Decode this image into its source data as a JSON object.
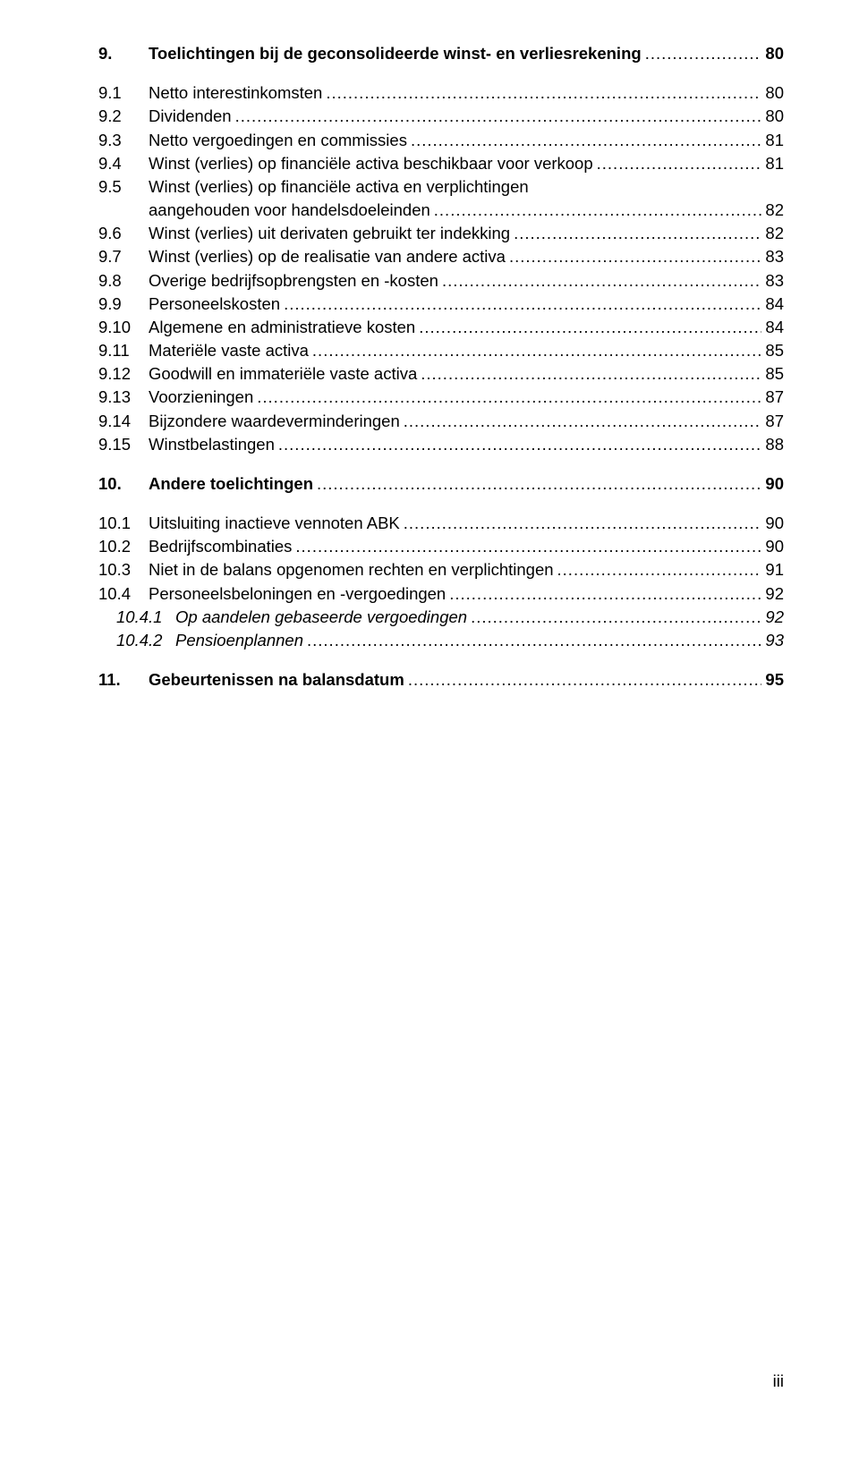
{
  "footer": "iii",
  "entries": [
    {
      "level": 1,
      "bold": true,
      "italic": false,
      "num": "9.",
      "title": "Toelichtingen bij de geconsolideerde winst- en verliesrekening",
      "page": "80",
      "gapBefore": "none"
    },
    {
      "level": 2,
      "bold": false,
      "italic": false,
      "num": "9.1",
      "title": "Netto interestinkomsten",
      "page": "80",
      "gapBefore": "group"
    },
    {
      "level": 2,
      "bold": false,
      "italic": false,
      "num": "9.2",
      "title": "Dividenden",
      "page": "80",
      "gapBefore": "none"
    },
    {
      "level": 2,
      "bold": false,
      "italic": false,
      "num": "9.3",
      "title": "Netto vergoedingen en commissies",
      "page": "81",
      "gapBefore": "none"
    },
    {
      "level": 2,
      "bold": false,
      "italic": false,
      "num": "9.4",
      "title": "Winst (verlies) op financiële activa beschikbaar voor verkoop",
      "page": "81",
      "gapBefore": "none"
    },
    {
      "level": 2,
      "bold": false,
      "italic": false,
      "num": "9.5",
      "title": "Winst (verlies) op financiële activa en verplichtingen aangehouden voor handelsdoeleinden",
      "page": "82",
      "gapBefore": "none",
      "wrap": true
    },
    {
      "level": 2,
      "bold": false,
      "italic": false,
      "num": "9.6",
      "title": "Winst (verlies) uit derivaten gebruikt ter indekking",
      "page": "82",
      "gapBefore": "none"
    },
    {
      "level": 2,
      "bold": false,
      "italic": false,
      "num": "9.7",
      "title": "Winst (verlies) op de realisatie van andere activa",
      "page": "83",
      "gapBefore": "none"
    },
    {
      "level": 2,
      "bold": false,
      "italic": false,
      "num": "9.8",
      "title": "Overige bedrijfsopbrengsten en -kosten",
      "page": "83",
      "gapBefore": "none"
    },
    {
      "level": 2,
      "bold": false,
      "italic": false,
      "num": "9.9",
      "title": "Personeelskosten",
      "page": "84",
      "gapBefore": "none"
    },
    {
      "level": 2,
      "bold": false,
      "italic": false,
      "num": "9.10",
      "title": "Algemene en administratieve kosten",
      "page": "84",
      "gapBefore": "none"
    },
    {
      "level": 2,
      "bold": false,
      "italic": false,
      "num": "9.11",
      "title": "Materiële vaste activa",
      "page": "85",
      "gapBefore": "none"
    },
    {
      "level": 2,
      "bold": false,
      "italic": false,
      "num": "9.12",
      "title": "Goodwill en immateriële vaste activa",
      "page": "85",
      "gapBefore": "none"
    },
    {
      "level": 2,
      "bold": false,
      "italic": false,
      "num": "9.13",
      "title": "Voorzieningen",
      "page": "87",
      "gapBefore": "none"
    },
    {
      "level": 2,
      "bold": false,
      "italic": false,
      "num": "9.14",
      "title": "Bijzondere waardeverminderingen",
      "page": "87",
      "gapBefore": "none"
    },
    {
      "level": 2,
      "bold": false,
      "italic": false,
      "num": "9.15",
      "title": "Winstbelastingen",
      "page": "88",
      "gapBefore": "none"
    },
    {
      "level": 1,
      "bold": true,
      "italic": false,
      "num": "10.",
      "title": "Andere toelichtingen",
      "page": "90",
      "gapBefore": "group"
    },
    {
      "level": 2,
      "bold": false,
      "italic": false,
      "num": "10.1",
      "title": "Uitsluiting inactieve vennoten ABK",
      "page": "90",
      "gapBefore": "group"
    },
    {
      "level": 2,
      "bold": false,
      "italic": false,
      "num": "10.2",
      "title": "Bedrijfscombinaties",
      "page": "90",
      "gapBefore": "none"
    },
    {
      "level": 2,
      "bold": false,
      "italic": false,
      "num": "10.3",
      "title": "Niet in de balans opgenomen rechten en verplichtingen",
      "page": "91",
      "gapBefore": "none"
    },
    {
      "level": 2,
      "bold": false,
      "italic": false,
      "num": "10.4",
      "title": "Personeelsbeloningen en -vergoedingen",
      "page": "92",
      "gapBefore": "none"
    },
    {
      "level": 3,
      "bold": false,
      "italic": true,
      "num": "10.4.1",
      "title": "Op aandelen gebaseerde vergoedingen",
      "page": "92",
      "gapBefore": "none"
    },
    {
      "level": 3,
      "bold": false,
      "italic": true,
      "num": "10.4.2",
      "title": "Pensioenplannen",
      "page": "93",
      "gapBefore": "none"
    },
    {
      "level": 1,
      "bold": true,
      "italic": false,
      "num": "11.",
      "title": "Gebeurtenissen na balansdatum",
      "page": "95",
      "gapBefore": "group"
    }
  ]
}
